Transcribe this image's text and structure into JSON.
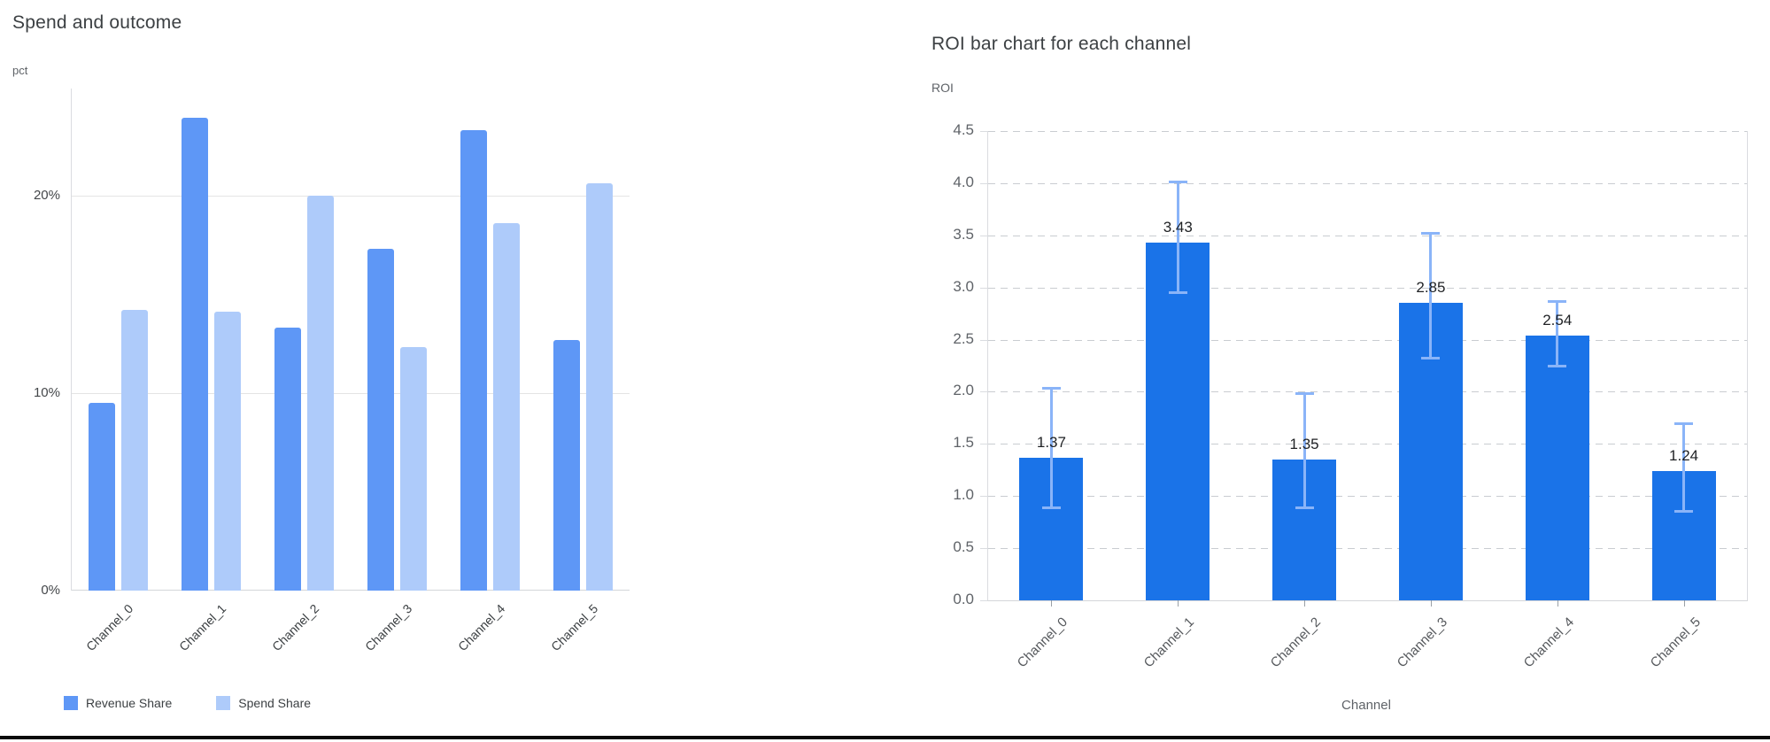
{
  "page": {
    "background": "#ffffff",
    "divider_color": "#0a0a0a"
  },
  "chart_data": [
    {
      "type": "bar",
      "title": "Spend and outcome",
      "ylabel": "pct",
      "xlabel": "",
      "categories": [
        "Channel_0",
        "Channel_1",
        "Channel_2",
        "Channel_3",
        "Channel_4",
        "Channel_5"
      ],
      "series": [
        {
          "name": "Revenue Share",
          "color": "#5e97f6",
          "values": [
            9.5,
            23.9,
            13.3,
            17.3,
            23.3,
            12.7
          ]
        },
        {
          "name": "Spend Share",
          "color": "#aecbfa",
          "values": [
            14.2,
            14.1,
            20.0,
            12.3,
            18.6,
            20.6
          ]
        }
      ],
      "y_ticks": [
        {
          "value": 0,
          "label": "0%"
        },
        {
          "value": 10,
          "label": "10%"
        },
        {
          "value": 20,
          "label": "20%"
        }
      ],
      "ylim": [
        0,
        25.4
      ],
      "grid": "solid",
      "legend_position": "bottom"
    },
    {
      "type": "bar",
      "title": "ROI bar chart for each channel",
      "ylabel": "ROI",
      "xlabel": "Channel",
      "categories": [
        "Channel_0",
        "Channel_1",
        "Channel_2",
        "Channel_3",
        "Channel_4",
        "Channel_5"
      ],
      "values": [
        1.37,
        3.43,
        1.35,
        2.85,
        2.54,
        1.24
      ],
      "bar_labels": [
        "1.37",
        "3.43",
        "1.35",
        "2.85",
        "2.54",
        "1.24"
      ],
      "error_low": [
        0.88,
        2.95,
        0.88,
        2.32,
        2.24,
        0.85
      ],
      "error_high": [
        2.04,
        4.02,
        1.99,
        3.52,
        2.87,
        1.7
      ],
      "bar_color": "#1a73e8",
      "error_color": "#8ab4f8",
      "y_ticks": [
        {
          "value": 0.0,
          "label": "0.0"
        },
        {
          "value": 0.5,
          "label": "0.5"
        },
        {
          "value": 1.0,
          "label": "1.0"
        },
        {
          "value": 1.5,
          "label": "1.5"
        },
        {
          "value": 2.0,
          "label": "2.0"
        },
        {
          "value": 2.5,
          "label": "2.5"
        },
        {
          "value": 3.0,
          "label": "3.0"
        },
        {
          "value": 3.5,
          "label": "3.5"
        },
        {
          "value": 4.0,
          "label": "4.0"
        },
        {
          "value": 4.5,
          "label": "4.5"
        },
        {
          "value": 4.5,
          "label": "4.5"
        }
      ],
      "ylim": [
        0,
        4.5
      ],
      "grid": "dashed",
      "legend_position": "none"
    }
  ]
}
